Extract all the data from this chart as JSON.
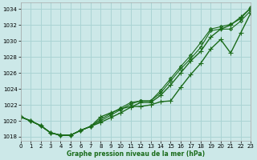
{
  "bg_color": "#cce8e8",
  "grid_color": "#aad4d4",
  "line_color": "#1a6b1a",
  "xlabel": "Graphe pression niveau de la mer (hPa)",
  "xlim": [
    0,
    23
  ],
  "ylim": [
    1017.5,
    1034.8
  ],
  "yticks": [
    1018,
    1020,
    1022,
    1024,
    1026,
    1028,
    1030,
    1032,
    1034
  ],
  "xticks": [
    0,
    1,
    2,
    3,
    4,
    5,
    6,
    7,
    8,
    9,
    10,
    11,
    12,
    13,
    14,
    15,
    16,
    17,
    18,
    19,
    20,
    21,
    22,
    23
  ],
  "series": [
    [
      1020.5,
      1020.0,
      1019.4,
      1018.5,
      1018.2,
      1018.2,
      1018.8,
      1019.3,
      1019.8,
      1020.4,
      1021.0,
      1021.7,
      1022.3,
      1022.3,
      1023.2,
      1024.5,
      1026.0,
      1027.5,
      1028.7,
      1030.5,
      1031.5,
      1032.0,
      1033.0,
      1034.1
    ],
    [
      1020.5,
      1020.0,
      1019.4,
      1018.5,
      1018.2,
      1018.2,
      1018.8,
      1019.3,
      1020.0,
      1020.7,
      1021.4,
      1022.1,
      1022.5,
      1022.5,
      1023.5,
      1025.0,
      1026.5,
      1027.8,
      1029.2,
      1031.3,
      1031.5,
      1031.5,
      1032.5,
      1033.8
    ],
    [
      1020.5,
      1020.0,
      1019.4,
      1018.5,
      1018.2,
      1018.2,
      1018.8,
      1019.3,
      1020.2,
      1020.9,
      1021.6,
      1022.3,
      1022.5,
      1022.5,
      1023.8,
      1025.3,
      1026.8,
      1028.2,
      1029.8,
      1031.5,
      1031.8,
      1032.1,
      1032.8,
      1034.2
    ],
    [
      1020.5,
      1020.0,
      1019.4,
      1018.5,
      1018.2,
      1018.2,
      1018.8,
      1019.3,
      1020.5,
      1021.0,
      1021.5,
      1021.8,
      1021.8,
      1022.0,
      1022.4,
      1022.5,
      1024.2,
      1025.8,
      1027.2,
      1029.0,
      1030.2,
      1028.5,
      1031.0,
      1033.5
    ]
  ]
}
